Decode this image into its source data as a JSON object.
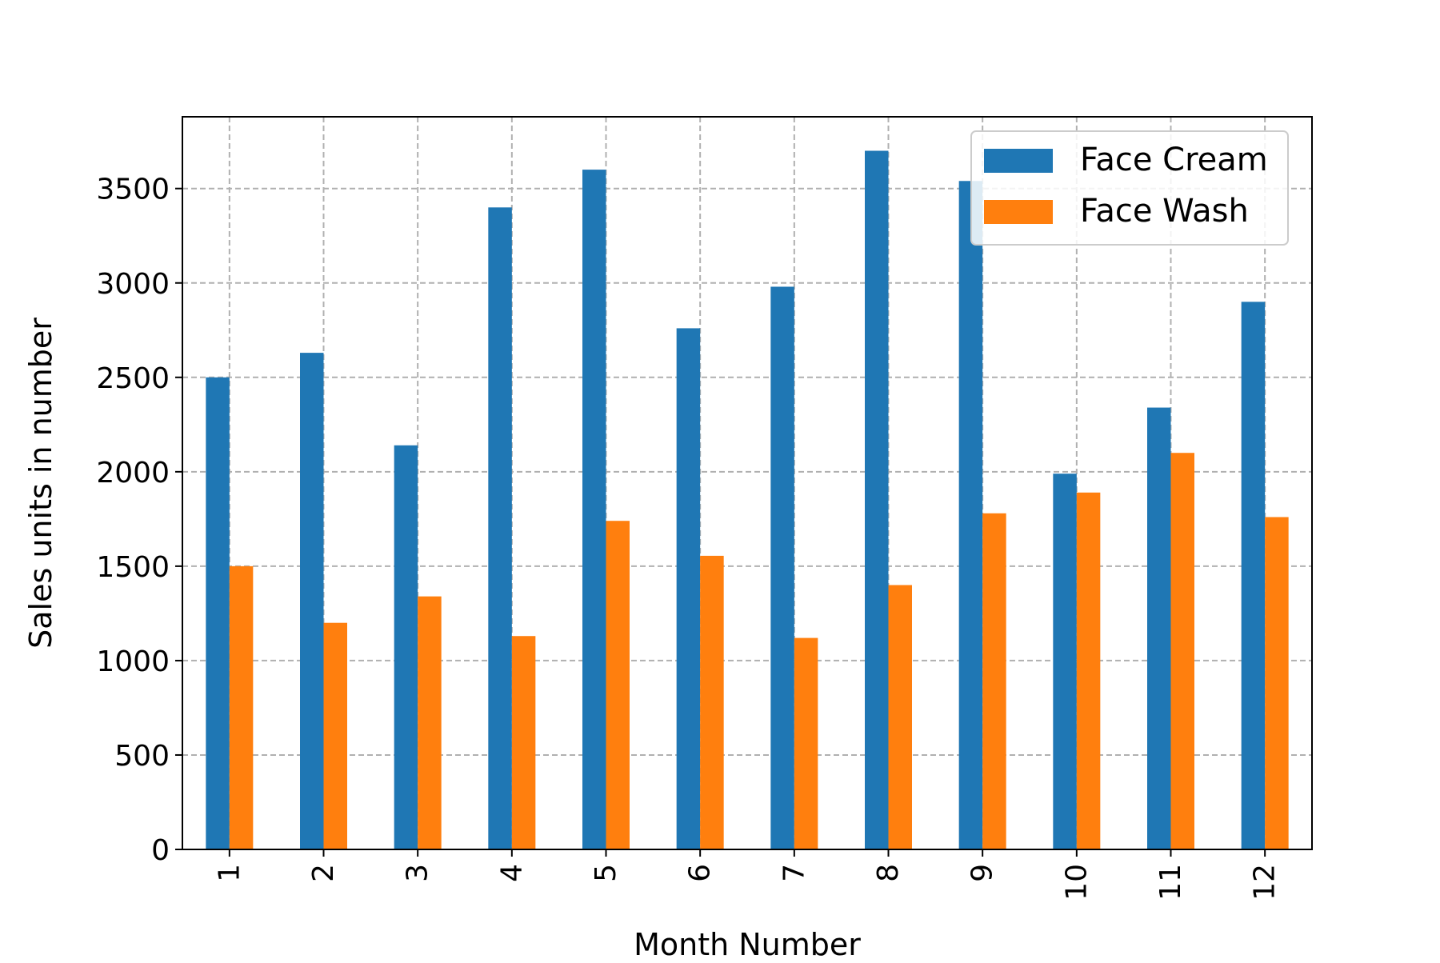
{
  "chart_data": {
    "type": "bar",
    "title": "",
    "xlabel": "Month Number",
    "ylabel": "Sales units in number",
    "categories": [
      "1",
      "2",
      "3",
      "4",
      "5",
      "6",
      "7",
      "8",
      "9",
      "10",
      "11",
      "12"
    ],
    "series": [
      {
        "name": "Face Cream",
        "color": "#1f77b4",
        "values": [
          2500,
          2630,
          2140,
          3400,
          3600,
          2760,
          2980,
          3700,
          3540,
          1990,
          2340,
          2900
        ]
      },
      {
        "name": "Face Wash",
        "color": "#ff7f0e",
        "values": [
          1500,
          1200,
          1340,
          1130,
          1740,
          1555,
          1120,
          1400,
          1780,
          1890,
          2100,
          1760
        ]
      }
    ],
    "ylim": [
      0,
      3880
    ],
    "yticks": [
      "0",
      "500",
      "1000",
      "1500",
      "2000",
      "2500",
      "3000",
      "3500"
    ],
    "grid": true,
    "grid_style": "dashed",
    "legend_position": "top-right",
    "x_tick_rotation": "vertical"
  }
}
